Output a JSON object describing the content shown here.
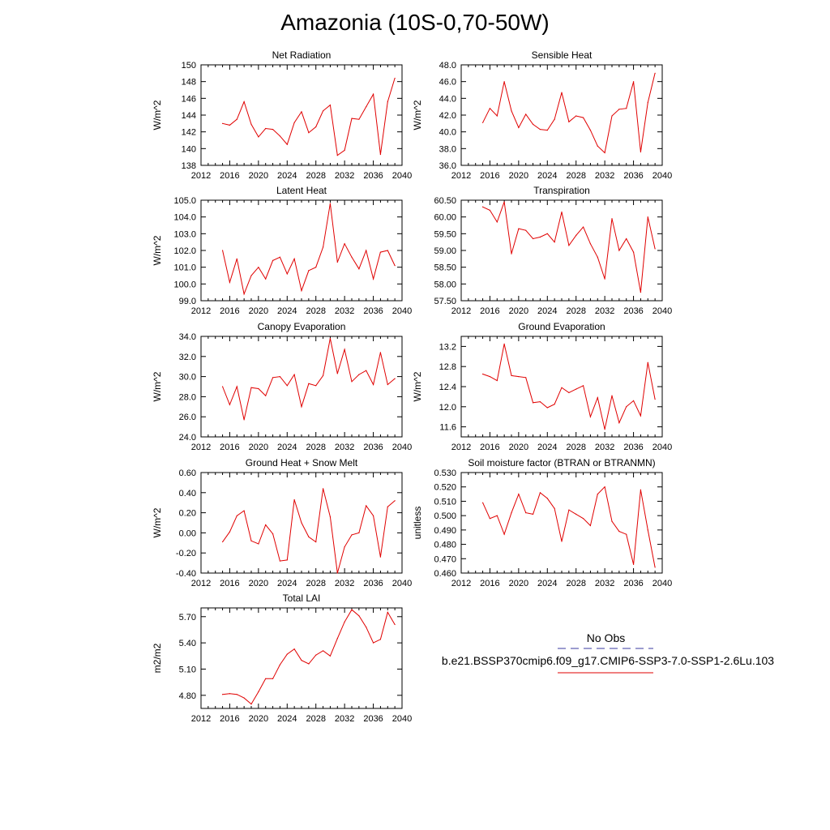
{
  "title": "Amazonia (10S-0,70-50W)",
  "legend": {
    "obs_label": "No Obs",
    "obs_color": "#3a3aa0",
    "model_label": "b.e21.BSSP370cmip6.f09_g17.CMIP6-SSP3-7.0-SSP1-2.6Lu.103",
    "model_color": "#e00000"
  },
  "chart_data": [
    {
      "type": "line",
      "title": "Net Radiation",
      "ylabel": "W/m^2",
      "xlim": [
        2012,
        2040
      ],
      "xticks": [
        2012,
        2016,
        2020,
        2024,
        2028,
        2032,
        2036,
        2040
      ],
      "xtick_labels": [
        "2012",
        "2016",
        "2020",
        "2024",
        "2028",
        "2032",
        "2036",
        "2040"
      ],
      "ylim": [
        138,
        150
      ],
      "yticks": [
        138,
        140,
        142,
        144,
        146,
        148,
        150
      ],
      "ytick_labels": [
        "138",
        "140",
        "142",
        "144",
        "146",
        "148",
        "150"
      ],
      "x": [
        2015,
        2016,
        2017,
        2018,
        2019,
        2020,
        2021,
        2022,
        2023,
        2024,
        2025,
        2026,
        2027,
        2028,
        2029,
        2030,
        2031,
        2032,
        2033,
        2034,
        2035,
        2036,
        2037,
        2038,
        2039
      ],
      "series": [
        {
          "values": [
            143.0,
            142.8,
            143.5,
            145.6,
            142.9,
            141.4,
            142.4,
            142.3,
            141.5,
            140.5,
            143.1,
            144.4,
            141.9,
            142.6,
            144.5,
            145.2,
            139.2,
            139.8,
            143.6,
            143.5,
            145.0,
            146.5,
            139.3,
            145.6,
            148.4
          ]
        }
      ]
    },
    {
      "type": "line",
      "title": "Sensible Heat",
      "ylabel": "W/m^2",
      "xlim": [
        2012,
        2040
      ],
      "xticks": [
        2012,
        2016,
        2020,
        2024,
        2028,
        2032,
        2036,
        2040
      ],
      "xtick_labels": [
        "2012",
        "2016",
        "2020",
        "2024",
        "2028",
        "2032",
        "2036",
        "2040"
      ],
      "ylim": [
        36,
        48
      ],
      "yticks": [
        36,
        38,
        40,
        42,
        44,
        46,
        48
      ],
      "ytick_labels": [
        "36.0",
        "38.0",
        "40.0",
        "42.0",
        "44.0",
        "46.0",
        "48.0"
      ],
      "x": [
        2015,
        2016,
        2017,
        2018,
        2019,
        2020,
        2021,
        2022,
        2023,
        2024,
        2025,
        2026,
        2027,
        2028,
        2029,
        2030,
        2031,
        2032,
        2033,
        2034,
        2035,
        2036,
        2037,
        2038,
        2039
      ],
      "series": [
        {
          "values": [
            41.1,
            42.8,
            41.9,
            46.0,
            42.5,
            40.5,
            42.1,
            40.9,
            40.3,
            40.2,
            41.5,
            44.7,
            41.2,
            41.9,
            41.7,
            40.2,
            38.3,
            37.5,
            41.9,
            42.7,
            42.8,
            46.0,
            37.6,
            43.5,
            47.0
          ]
        }
      ]
    },
    {
      "type": "line",
      "title": "Latent Heat",
      "ylabel": "W/m^2",
      "xlim": [
        2012,
        2040
      ],
      "xticks": [
        2012,
        2016,
        2020,
        2024,
        2028,
        2032,
        2036,
        2040
      ],
      "xtick_labels": [
        "2012",
        "2016",
        "2020",
        "2024",
        "2028",
        "2032",
        "2036",
        "2040"
      ],
      "ylim": [
        99,
        105
      ],
      "yticks": [
        99,
        100,
        101,
        102,
        103,
        104,
        105
      ],
      "ytick_labels": [
        "99.0",
        "100.0",
        "101.0",
        "102.0",
        "103.0",
        "104.0",
        "105.0"
      ],
      "x": [
        2015,
        2016,
        2017,
        2018,
        2019,
        2020,
        2021,
        2022,
        2023,
        2024,
        2025,
        2026,
        2027,
        2028,
        2029,
        2030,
        2031,
        2032,
        2033,
        2034,
        2035,
        2036,
        2037,
        2038,
        2039
      ],
      "series": [
        {
          "values": [
            102.0,
            100.1,
            101.5,
            99.4,
            100.5,
            101.0,
            100.3,
            101.4,
            101.6,
            100.6,
            101.5,
            99.6,
            100.8,
            101.0,
            102.2,
            104.8,
            101.3,
            102.4,
            101.6,
            100.9,
            102.0,
            100.3,
            101.9,
            102.0,
            101.1
          ]
        }
      ]
    },
    {
      "type": "line",
      "title": "Transpiration",
      "ylabel": "",
      "xlim": [
        2012,
        2040
      ],
      "xticks": [
        2012,
        2016,
        2020,
        2024,
        2028,
        2032,
        2036,
        2040
      ],
      "xtick_labels": [
        "2012",
        "2016",
        "2020",
        "2024",
        "2028",
        "2032",
        "2036",
        "2040"
      ],
      "ylim": [
        57.5,
        60.5
      ],
      "yticks": [
        57.5,
        58.0,
        58.5,
        59.0,
        59.5,
        60.0,
        60.5
      ],
      "ytick_labels": [
        "57.50",
        "58.00",
        "58.50",
        "59.00",
        "59.50",
        "60.00",
        "60.50"
      ],
      "x": [
        2015,
        2016,
        2017,
        2018,
        2019,
        2020,
        2021,
        2022,
        2023,
        2024,
        2025,
        2026,
        2027,
        2028,
        2029,
        2030,
        2031,
        2032,
        2033,
        2034,
        2035,
        2036,
        2037,
        2038,
        2039
      ],
      "series": [
        {
          "values": [
            60.3,
            60.2,
            59.85,
            60.45,
            58.9,
            59.65,
            59.6,
            59.35,
            59.4,
            59.5,
            59.25,
            60.15,
            59.15,
            59.45,
            59.7,
            59.2,
            58.8,
            58.15,
            59.95,
            59.0,
            59.35,
            58.95,
            57.75,
            60.0,
            59.05
          ]
        }
      ]
    },
    {
      "type": "line",
      "title": "Canopy Evaporation",
      "ylabel": "W/m^2",
      "xlim": [
        2012,
        2040
      ],
      "xticks": [
        2012,
        2016,
        2020,
        2024,
        2028,
        2032,
        2036,
        2040
      ],
      "xtick_labels": [
        "2012",
        "2016",
        "2020",
        "2024",
        "2028",
        "2032",
        "2036",
        "2040"
      ],
      "ylim": [
        24,
        34
      ],
      "yticks": [
        24,
        26,
        28,
        30,
        32,
        34
      ],
      "ytick_labels": [
        "24.0",
        "26.0",
        "28.0",
        "30.0",
        "32.0",
        "34.0"
      ],
      "x": [
        2015,
        2016,
        2017,
        2018,
        2019,
        2020,
        2021,
        2022,
        2023,
        2024,
        2025,
        2026,
        2027,
        2028,
        2029,
        2030,
        2031,
        2032,
        2033,
        2034,
        2035,
        2036,
        2037,
        2038,
        2039
      ],
      "series": [
        {
          "values": [
            29.0,
            27.2,
            29.0,
            25.7,
            28.9,
            28.8,
            28.1,
            29.9,
            30.0,
            29.1,
            30.2,
            27.0,
            29.3,
            29.1,
            30.1,
            33.8,
            30.3,
            32.7,
            29.5,
            30.2,
            30.6,
            29.2,
            32.4,
            29.2,
            29.8
          ]
        }
      ]
    },
    {
      "type": "line",
      "title": "Ground Evaporation",
      "ylabel": "W/m^2",
      "xlim": [
        2012,
        2040
      ],
      "xticks": [
        2012,
        2016,
        2020,
        2024,
        2028,
        2032,
        2036,
        2040
      ],
      "xtick_labels": [
        "2012",
        "2016",
        "2020",
        "2024",
        "2028",
        "2032",
        "2036",
        "2040"
      ],
      "ylim": [
        11.4,
        13.4
      ],
      "yticks": [
        11.6,
        12.0,
        12.4,
        12.8,
        13.2
      ],
      "ytick_labels": [
        "11.6",
        "12.0",
        "12.4",
        "12.8",
        "13.2"
      ],
      "x": [
        2015,
        2016,
        2017,
        2018,
        2019,
        2020,
        2021,
        2022,
        2023,
        2024,
        2025,
        2026,
        2027,
        2028,
        2029,
        2030,
        2031,
        2032,
        2033,
        2034,
        2035,
        2036,
        2037,
        2038,
        2039
      ],
      "series": [
        {
          "values": [
            12.65,
            12.6,
            12.52,
            13.25,
            12.62,
            12.6,
            12.58,
            12.08,
            12.1,
            11.98,
            12.05,
            12.38,
            12.28,
            12.35,
            12.42,
            11.8,
            12.18,
            11.55,
            12.22,
            11.68,
            12.0,
            12.12,
            11.82,
            12.88,
            12.15
          ]
        }
      ]
    },
    {
      "type": "line",
      "title": "Ground Heat + Snow Melt",
      "ylabel": "W/m^2",
      "xlim": [
        2012,
        2040
      ],
      "xticks": [
        2012,
        2016,
        2020,
        2024,
        2028,
        2032,
        2036,
        2040
      ],
      "xtick_labels": [
        "2012",
        "2016",
        "2020",
        "2024",
        "2028",
        "2032",
        "2036",
        "2040"
      ],
      "ylim": [
        -0.4,
        0.6
      ],
      "yticks": [
        -0.4,
        -0.2,
        0.0,
        0.2,
        0.4,
        0.6
      ],
      "ytick_labels": [
        "-0.40",
        "-0.20",
        "0.00",
        "0.20",
        "0.40",
        "0.60"
      ],
      "x": [
        2015,
        2016,
        2017,
        2018,
        2019,
        2020,
        2021,
        2022,
        2023,
        2024,
        2025,
        2026,
        2027,
        2028,
        2029,
        2030,
        2031,
        2032,
        2033,
        2034,
        2035,
        2036,
        2037,
        2038,
        2039
      ],
      "series": [
        {
          "values": [
            -0.09,
            0.01,
            0.17,
            0.22,
            -0.08,
            -0.11,
            0.08,
            -0.01,
            -0.28,
            -0.27,
            0.33,
            0.1,
            -0.04,
            -0.09,
            0.44,
            0.16,
            -0.4,
            -0.14,
            -0.02,
            0.0,
            0.27,
            0.17,
            -0.24,
            0.26,
            0.32
          ]
        }
      ]
    },
    {
      "type": "line",
      "title": "Soil moisture factor (BTRAN or BTRANMN)",
      "ylabel": "unitless",
      "xlim": [
        2012,
        2040
      ],
      "xticks": [
        2012,
        2016,
        2020,
        2024,
        2028,
        2032,
        2036,
        2040
      ],
      "xtick_labels": [
        "2012",
        "2016",
        "2020",
        "2024",
        "2028",
        "2032",
        "2036",
        "2040"
      ],
      "ylim": [
        0.46,
        0.53
      ],
      "yticks": [
        0.46,
        0.47,
        0.48,
        0.49,
        0.5,
        0.51,
        0.52,
        0.53
      ],
      "ytick_labels": [
        "0.460",
        "0.470",
        "0.480",
        "0.490",
        "0.500",
        "0.510",
        "0.520",
        "0.530"
      ],
      "x": [
        2015,
        2016,
        2017,
        2018,
        2019,
        2020,
        2021,
        2022,
        2023,
        2024,
        2025,
        2026,
        2027,
        2028,
        2029,
        2030,
        2031,
        2032,
        2033,
        2034,
        2035,
        2036,
        2037,
        2038,
        2039
      ],
      "series": [
        {
          "values": [
            0.509,
            0.498,
            0.5,
            0.487,
            0.502,
            0.515,
            0.502,
            0.501,
            0.516,
            0.512,
            0.505,
            0.482,
            0.504,
            0.501,
            0.498,
            0.493,
            0.515,
            0.52,
            0.496,
            0.489,
            0.487,
            0.466,
            0.518,
            0.49,
            0.464
          ]
        }
      ]
    },
    {
      "type": "line",
      "title": "Total LAI",
      "ylabel": "m2/m2",
      "xlim": [
        2012,
        2040
      ],
      "xticks": [
        2012,
        2016,
        2020,
        2024,
        2028,
        2032,
        2036,
        2040
      ],
      "xtick_labels": [
        "2012",
        "2016",
        "2020",
        "2024",
        "2028",
        "2032",
        "2036",
        "2040"
      ],
      "ylim": [
        4.65,
        5.8
      ],
      "yticks": [
        4.8,
        5.1,
        5.4,
        5.7
      ],
      "ytick_labels": [
        "4.80",
        "5.10",
        "5.40",
        "5.70"
      ],
      "x": [
        2015,
        2016,
        2017,
        2018,
        2019,
        2020,
        2021,
        2022,
        2023,
        2024,
        2025,
        2026,
        2027,
        2028,
        2029,
        2030,
        2031,
        2032,
        2033,
        2034,
        2035,
        2036,
        2037,
        2038,
        2039
      ],
      "series": [
        {
          "values": [
            4.81,
            4.82,
            4.81,
            4.77,
            4.7,
            4.84,
            4.99,
            4.99,
            5.15,
            5.27,
            5.33,
            5.2,
            5.16,
            5.26,
            5.31,
            5.25,
            5.45,
            5.64,
            5.78,
            5.71,
            5.58,
            5.4,
            5.44,
            5.75,
            5.61
          ]
        }
      ]
    }
  ]
}
